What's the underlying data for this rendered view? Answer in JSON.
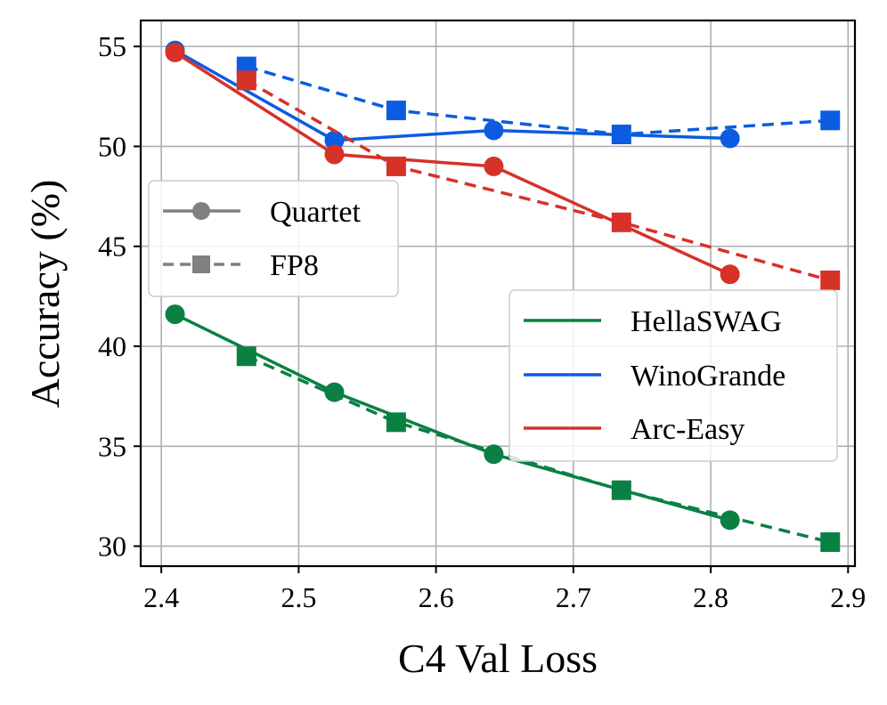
{
  "chart_data": {
    "type": "line",
    "xlabel": "C4 Val Loss",
    "ylabel": "Accuracy (%)",
    "xlim": [
      2.385,
      2.905
    ],
    "ylim": [
      29.0,
      56.3
    ],
    "xticks": [
      2.4,
      2.5,
      2.6,
      2.7,
      2.8,
      2.9
    ],
    "xtick_labels": [
      "2.4",
      "2.5",
      "2.6",
      "2.7",
      "2.8",
      "2.9"
    ],
    "yticks": [
      30,
      35,
      40,
      45,
      50,
      55
    ],
    "ytick_labels": [
      "30",
      "35",
      "40",
      "45",
      "50",
      "55"
    ],
    "grid": true,
    "legend_style": {
      "placement": "center-left",
      "entries": [
        {
          "label": "Quartet",
          "linestyle": "solid",
          "marker": "circle",
          "color": "#808080"
        },
        {
          "label": "FP8",
          "linestyle": "dashed",
          "marker": "square",
          "color": "#808080"
        }
      ]
    },
    "legend_task": {
      "placement": "lower-right",
      "entries": [
        {
          "label": "HellaSWAG",
          "color": "#0a8043"
        },
        {
          "label": "WinoGrande",
          "color": "#0b5ce0"
        },
        {
          "label": "Arc-Easy",
          "color": "#d63228"
        }
      ]
    },
    "series": [
      {
        "task": "HellaSWAG",
        "method": "Quartet",
        "color": "#0a8043",
        "linestyle": "solid",
        "marker": "circle",
        "x": [
          2.41,
          2.526,
          2.642,
          2.814
        ],
        "y": [
          41.6,
          37.7,
          34.6,
          31.3
        ]
      },
      {
        "task": "HellaSWAG",
        "method": "FP8",
        "color": "#0a8043",
        "linestyle": "dashed",
        "marker": "square",
        "x": [
          2.462,
          2.571,
          2.735,
          2.887
        ],
        "y": [
          39.5,
          36.2,
          32.8,
          30.2
        ]
      },
      {
        "task": "WinoGrande",
        "method": "Quartet",
        "color": "#0b5ce0",
        "linestyle": "solid",
        "marker": "circle",
        "x": [
          2.41,
          2.526,
          2.642,
          2.814
        ],
        "y": [
          54.8,
          50.3,
          50.8,
          50.4
        ]
      },
      {
        "task": "WinoGrande",
        "method": "FP8",
        "color": "#0b5ce0",
        "linestyle": "dashed",
        "marker": "square",
        "x": [
          2.462,
          2.571,
          2.735,
          2.887
        ],
        "y": [
          54.0,
          51.8,
          50.6,
          51.3
        ]
      },
      {
        "task": "Arc-Easy",
        "method": "Quartet",
        "color": "#d63228",
        "linestyle": "solid",
        "marker": "circle",
        "x": [
          2.41,
          2.526,
          2.642,
          2.814
        ],
        "y": [
          54.7,
          49.6,
          49.0,
          43.6
        ]
      },
      {
        "task": "Arc-Easy",
        "method": "FP8",
        "color": "#d63228",
        "linestyle": "dashed",
        "marker": "square",
        "x": [
          2.462,
          2.571,
          2.735,
          2.887
        ],
        "y": [
          53.3,
          49.0,
          46.2,
          43.3
        ]
      }
    ]
  }
}
